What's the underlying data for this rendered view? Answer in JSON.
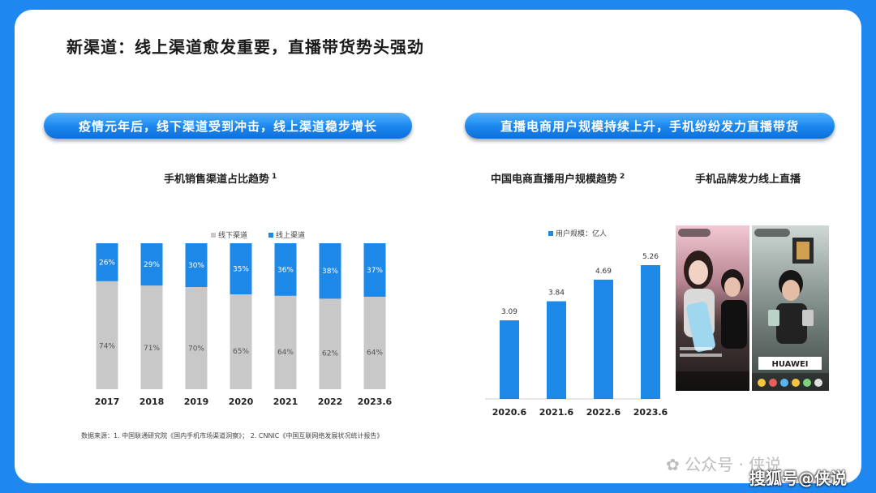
{
  "page": {
    "title": "新渠道：线上渠道愈发重要，直播带货势头强劲",
    "left_banner": "疫情元年后，线下渠道受到冲击，线上渠道稳步增长",
    "right_banner": "直播电商用户规模持续上升，手机纷纷发力直播带货",
    "phones_title": "手机品牌发力线上直播",
    "source": "数据来源：1. 中国联通研究院《国内手机市场渠道洞察》； 2. CNNIC《中国互联网络发展状况统计报告》",
    "watermark_wechat": "公众号 · 侠说",
    "watermark_sohu": "搜狐号@侠说",
    "phone_brand_text": "HUAWEI"
  },
  "colors": {
    "offline": "#C8C8C8",
    "online": "#1E88E8",
    "users": "#1E88E8",
    "frame": "#1E88F0"
  },
  "chart_data": [
    {
      "type": "bar",
      "stacked": true,
      "title": "手机销售渠道占比趋势",
      "title_note": "1",
      "categories": [
        "2017",
        "2018",
        "2019",
        "2020",
        "2021",
        "2022",
        "2023.6"
      ],
      "series": [
        {
          "name": "线下渠道",
          "values": [
            74,
            71,
            70,
            65,
            64,
            62,
            64
          ],
          "labels": [
            "74%",
            "71%",
            "70%",
            "65%",
            "64%",
            "62%",
            "64%"
          ]
        },
        {
          "name": "线上渠道",
          "values": [
            26,
            29,
            30,
            35,
            36,
            38,
            37
          ],
          "labels": [
            "26%",
            "29%",
            "30%",
            "35%",
            "36%",
            "38%",
            "37%"
          ]
        }
      ],
      "legend": "top-center",
      "grid": false
    },
    {
      "type": "bar",
      "title": "中国电商直播用户规模趋势",
      "title_note": "2",
      "categories": [
        "2020.6",
        "2021.6",
        "2022.6",
        "2023.6"
      ],
      "series": [
        {
          "name": "用户规模：亿人",
          "values": [
            3.09,
            3.84,
            4.69,
            5.26
          ],
          "labels": [
            "3.09",
            "3.84",
            "4.69",
            "5.26"
          ]
        }
      ],
      "ylim": [
        0,
        5.5
      ],
      "legend": "top-center",
      "grid": false
    }
  ]
}
